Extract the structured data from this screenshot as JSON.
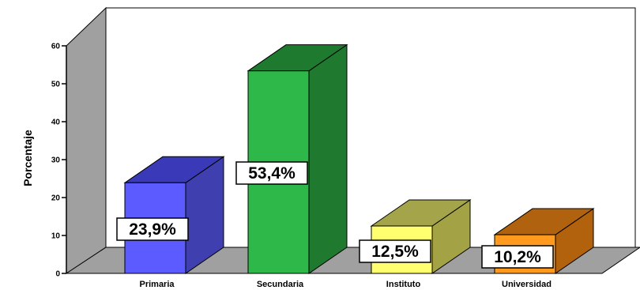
{
  "chart_data": {
    "type": "bar",
    "title": "",
    "xlabel": "",
    "ylabel": "Porcentaje",
    "ylim": [
      0,
      60
    ],
    "yticks": [
      0,
      10,
      20,
      30,
      40,
      50,
      60
    ],
    "categories": [
      "Primaria",
      "Secundaria",
      "Instituto",
      "Universidad"
    ],
    "values": [
      23.9,
      53.4,
      12.5,
      10.2
    ],
    "data_labels": [
      "23,9%",
      "53,4%",
      "12,5%",
      "10,2%"
    ],
    "colors": {
      "Primaria": {
        "front": "#5b5bff",
        "side": "#3f3fb0",
        "top": "#3a3ab8"
      },
      "Secundaria": {
        "front": "#2fb84a",
        "side": "#1f7a30",
        "top": "#1e7a2e"
      },
      "Instituto": {
        "front": "#ffff70",
        "side": "#a3a345",
        "top": "#a4a44a"
      },
      "Universidad": {
        "front": "#ff9a1f",
        "side": "#b2620c",
        "top": "#b0620e"
      }
    },
    "wall_color": "#a0a0a0",
    "floor_color": "#a0a0a0",
    "grid": false,
    "legend": "none",
    "style": "3d-bar"
  }
}
